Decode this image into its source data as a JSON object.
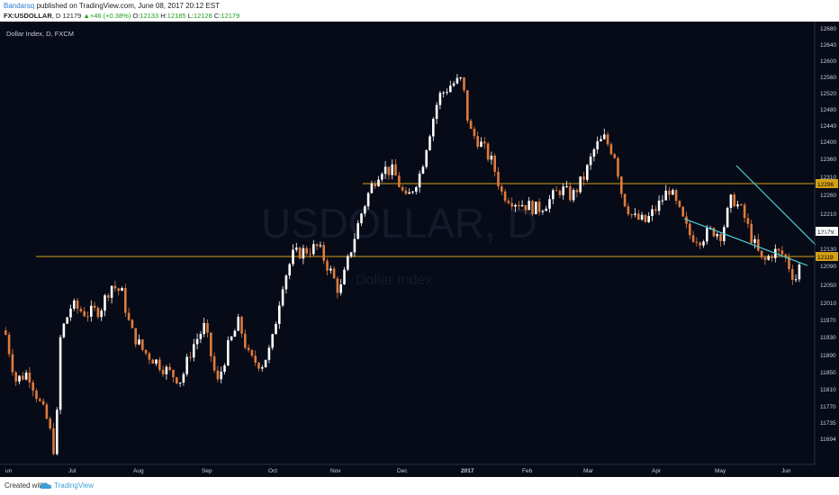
{
  "header": {
    "author": "Bandarsq",
    "published": "published on TradingView.com, June 08, 2017 20:12 EST",
    "symbol": "FX:USDOLLAR",
    "interval": ", D",
    "close_value": "12179",
    "change": "+46 (+0.38%)",
    "open_label": "O:",
    "open": "12133",
    "high_label": "H:",
    "high": "12185",
    "low_label": "L:",
    "low": "12128",
    "close_label": "C:",
    "close": "12179"
  },
  "chart_data": {
    "type": "candlestick",
    "title": "Dollar Index, D, FXCM",
    "watermark": "USDOLLAR, D",
    "watermark_sub": "Dollar Index",
    "x_tick_labels": [
      "un",
      "Jul",
      "Aug",
      "Sep",
      "Oct",
      "Nov",
      "Dec",
      "2017",
      "Feb",
      "Mar",
      "Apr",
      "May",
      "Jun"
    ],
    "y_tick_labels": [
      "12680",
      "12640",
      "12600",
      "12560",
      "12520",
      "12480",
      "12440",
      "12400",
      "12360",
      "12310",
      "12260",
      "12210",
      "12170",
      "12130",
      "12090",
      "12050",
      "12010",
      "11970",
      "11930",
      "11890",
      "11850",
      "11810",
      "11770",
      "11735",
      "11694"
    ],
    "horizontal_levels": [
      {
        "label": "12296",
        "value": 12296
      },
      {
        "label": "12119",
        "value": 12119
      }
    ],
    "last_price_label": "12179",
    "trendlines": [
      {
        "from": [
          "May 10",
          12340
        ],
        "to": [
          "Jun 12",
          12160
        ]
      },
      {
        "from": [
          "Apr 12",
          12200
        ],
        "to": [
          "Jun 12",
          12100
        ]
      }
    ],
    "colors": {
      "background": "#070b17",
      "up": "#ffffff",
      "down": "#e07b3c",
      "level": "#d4a017",
      "trend": "#4fd1d9"
    }
  },
  "footer": {
    "created": "Created with",
    "brand": "TradingView"
  }
}
